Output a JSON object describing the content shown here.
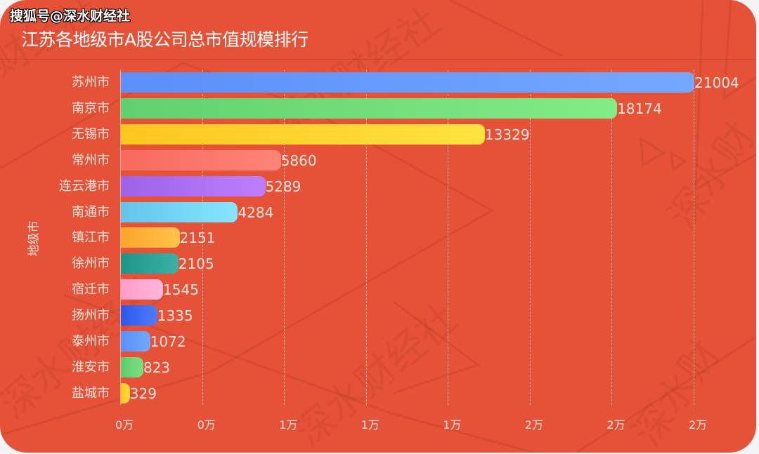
{
  "watermark": "搜狐号@深水财经社",
  "colors": {
    "background": "#E65238",
    "bar_gradients": [
      [
        "#5B8FF9",
        "#74A8FF"
      ],
      [
        "#62D06F",
        "#82EC86"
      ],
      [
        "#FFC61F",
        "#FFE23F"
      ],
      [
        "#F86A5E",
        "#FF8478"
      ],
      [
        "#9B62E8",
        "#BD7FFF"
      ],
      [
        "#62C5EA",
        "#86E6FF"
      ],
      [
        "#FFA42B",
        "#FFC44A"
      ],
      [
        "#1F9488",
        "#3BB0A4"
      ],
      [
        "#FF9DC9",
        "#FFB6DC"
      ],
      [
        "#2F58E8",
        "#4F7BFF"
      ],
      [
        "#5A8FF8",
        "#73A8FF"
      ],
      [
        "#5CCB6B",
        "#7DE07F"
      ],
      [
        "#FFC61F",
        "#FFD93B"
      ]
    ]
  },
  "chart_data": {
    "type": "bar",
    "orientation": "horizontal",
    "title": "江苏各地级市A股公司总市值规模排行",
    "xlabel": "",
    "ylabel": "地级市",
    "categories": [
      "苏州市",
      "南京市",
      "无锡市",
      "常州市",
      "连云港市",
      "南通市",
      "镇江市",
      "徐州市",
      "宿迁市",
      "扬州市",
      "泰州市",
      "淮安市",
      "盐城市"
    ],
    "values": [
      21004,
      18174,
      13329,
      5860,
      5289,
      4284,
      2151,
      2105,
      1545,
      1335,
      1072,
      823,
      329
    ],
    "value_labels": [
      "21004",
      "18174",
      "13329",
      "5860",
      "5289",
      "4284",
      "2151",
      "2105",
      "1545",
      "1335",
      "1072",
      "823",
      "329"
    ],
    "xlim": [
      0,
      21000
    ],
    "x_ticks": [
      0,
      3000,
      6000,
      9000,
      12000,
      15000,
      18000,
      21000
    ],
    "x_tick_labels": [
      "0万",
      "0万",
      "1万",
      "1万",
      "1万",
      "2万",
      "2万",
      "2万"
    ],
    "grid": "vertical dashed",
    "legend": "none"
  }
}
